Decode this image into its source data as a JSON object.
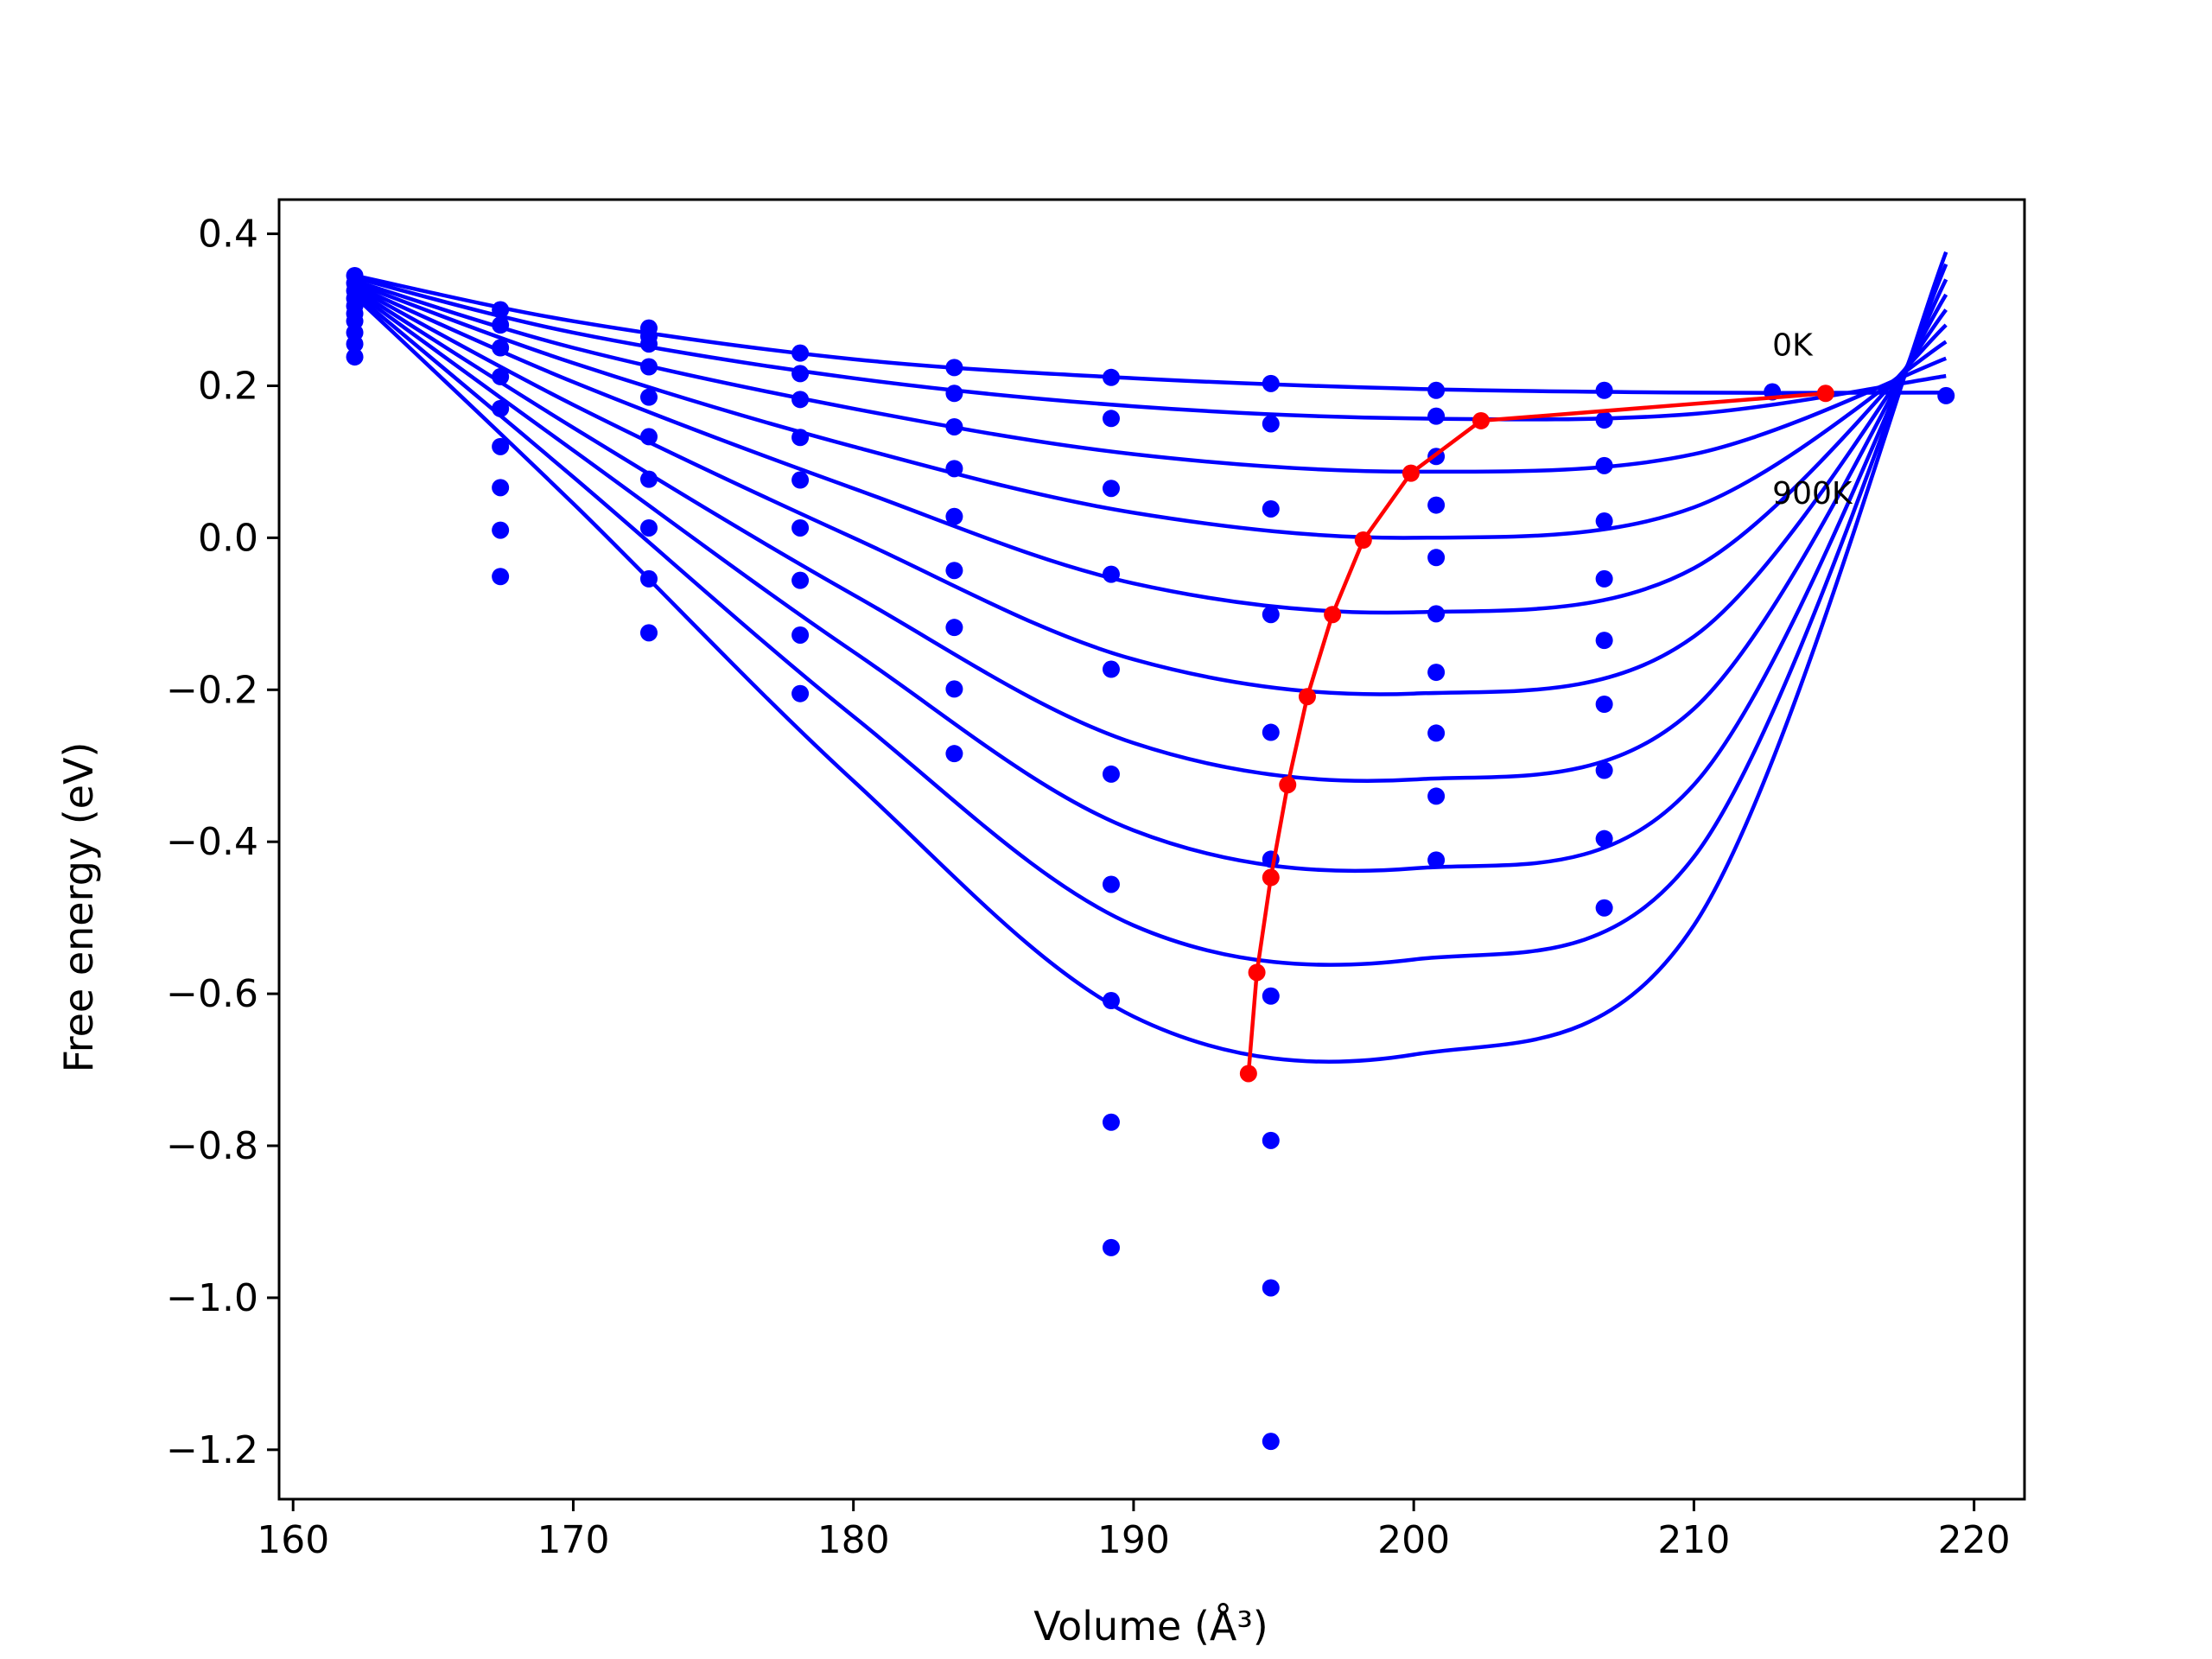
{
  "chart_data": {
    "type": "line",
    "title": "",
    "xlabel": "Volume (Å³)",
    "ylabel": "Free energy (eV)",
    "xlim": [
      159.5,
      221.8
    ],
    "ylim": [
      -1.265,
      0.445
    ],
    "x_ticks": [
      160,
      170,
      180,
      190,
      200,
      210,
      220
    ],
    "y_ticks": [
      0.4,
      0.2,
      0.0,
      -0.2,
      -0.4,
      -0.6,
      -0.8,
      -1.0,
      -1.2
    ],
    "x_tick_labels": [
      "160",
      "170",
      "180",
      "190",
      "200",
      "210",
      "220"
    ],
    "y_tick_labels": [
      "0.4",
      "0.2",
      "0.0",
      "−0.2",
      "−0.4",
      "−0.6",
      "−0.8",
      "−1.0",
      "−1.2"
    ],
    "grid": false,
    "legend": "none",
    "colors": {
      "curves": "#0000ff",
      "minima": "#ff0000"
    },
    "annotations": [
      {
        "text": "0K",
        "x": 212.8,
        "y": 0.24
      },
      {
        "text": "900K",
        "x": 212.8,
        "y": 0.045
      }
    ],
    "fit_curves": [
      {
        "x": [
          162.2,
          170,
          180,
          190,
          200,
          210,
          219
        ],
        "y": [
          0.345,
          0.285,
          0.235,
          0.21,
          0.196,
          0.191,
          0.191
        ]
      },
      {
        "x": [
          162.2,
          170,
          180,
          190,
          200,
          210,
          219
        ],
        "y": [
          0.342,
          0.27,
          0.21,
          0.173,
          0.157,
          0.163,
          0.213
        ]
      },
      {
        "x": [
          162.2,
          170,
          180,
          190,
          200,
          210,
          219
        ],
        "y": [
          0.338,
          0.25,
          0.17,
          0.11,
          0.087,
          0.11,
          0.236
        ]
      },
      {
        "x": [
          162.2,
          170,
          180,
          190,
          200,
          210,
          219
        ],
        "y": [
          0.335,
          0.23,
          0.12,
          0.033,
          0.0,
          0.04,
          0.258
        ]
      },
      {
        "x": [
          162.2,
          170,
          180,
          190,
          200,
          210,
          219
        ],
        "y": [
          0.332,
          0.205,
          0.065,
          -0.06,
          -0.098,
          -0.04,
          0.28
        ]
      },
      {
        "x": [
          162.2,
          170,
          180,
          190,
          200,
          210,
          219
        ],
        "y": [
          0.33,
          0.175,
          0.0,
          -0.16,
          -0.205,
          -0.13,
          0.3
        ]
      },
      {
        "x": [
          162.2,
          170,
          180,
          190,
          200,
          210,
          219
        ],
        "y": [
          0.327,
          0.145,
          -0.075,
          -0.27,
          -0.318,
          -0.225,
          0.32
        ]
      },
      {
        "x": [
          162.2,
          170,
          180,
          190,
          200,
          210,
          219
        ],
        "y": [
          0.324,
          0.115,
          -0.15,
          -0.385,
          -0.435,
          -0.325,
          0.34
        ]
      },
      {
        "x": [
          162.2,
          170,
          180,
          190,
          200,
          210,
          219
        ],
        "y": [
          0.321,
          0.08,
          -0.235,
          -0.51,
          -0.555,
          -0.42,
          0.36
        ]
      },
      {
        "x": [
          162.2,
          170,
          180,
          190,
          200,
          210,
          219
        ],
        "y": [
          0.318,
          0.045,
          -0.32,
          -0.63,
          -0.68,
          -0.51,
          0.376
        ]
      }
    ],
    "data_points": [
      {
        "x": 162.2,
        "y": [
          0.345,
          0.335,
          0.325,
          0.315,
          0.305,
          0.295,
          0.285,
          0.27,
          0.255,
          0.238
        ]
      },
      {
        "x": 167.4,
        "y": [
          0.3,
          0.28,
          0.25,
          0.212,
          0.17,
          0.12,
          0.066,
          0.01,
          -0.051
        ]
      },
      {
        "x": 172.7,
        "y": [
          0.276,
          0.265,
          0.255,
          0.225,
          0.185,
          0.133,
          0.077,
          0.013,
          -0.054,
          -0.125
        ]
      },
      {
        "x": 178.1,
        "y": [
          0.243,
          0.216,
          0.182,
          0.132,
          0.076,
          0.013,
          -0.056,
          -0.128,
          -0.205
        ]
      },
      {
        "x": 183.6,
        "y": [
          0.224,
          0.19,
          0.146,
          0.091,
          0.028,
          -0.043,
          -0.118,
          -0.199,
          -0.284
        ]
      },
      {
        "x": 189.2,
        "y": [
          0.211,
          0.157,
          0.065,
          -0.048,
          -0.173,
          -0.311,
          -0.456,
          -0.609,
          -0.769,
          -0.934
        ]
      },
      {
        "x": 194.9,
        "y": [
          0.203,
          0.15,
          0.038,
          -0.101,
          -0.256,
          -0.423,
          -0.603,
          -0.793,
          -0.987,
          -1.189
        ]
      },
      {
        "x": 200.8,
        "y": [
          0.194,
          0.16,
          0.107,
          0.043,
          -0.026,
          -0.1,
          -0.177,
          -0.257,
          -0.34,
          -0.424
        ]
      },
      {
        "x": 206.8,
        "y": [
          0.194,
          0.155,
          0.095,
          0.022,
          -0.054,
          -0.135,
          -0.219,
          -0.306,
          -0.396,
          -0.487
        ]
      },
      {
        "x": 212.8,
        "y": [
          0.192
        ]
      },
      {
        "x": 219.0,
        "y": [
          0.187
        ]
      }
    ],
    "minima_curve": {
      "x": [
        214.7,
        202.4,
        199.9,
        198.2,
        197.1,
        196.2,
        195.5,
        194.9,
        194.4,
        194.1
      ],
      "y": [
        0.19,
        0.154,
        0.085,
        -0.003,
        -0.101,
        -0.209,
        -0.325,
        -0.447,
        -0.572,
        -0.705
      ]
    }
  }
}
